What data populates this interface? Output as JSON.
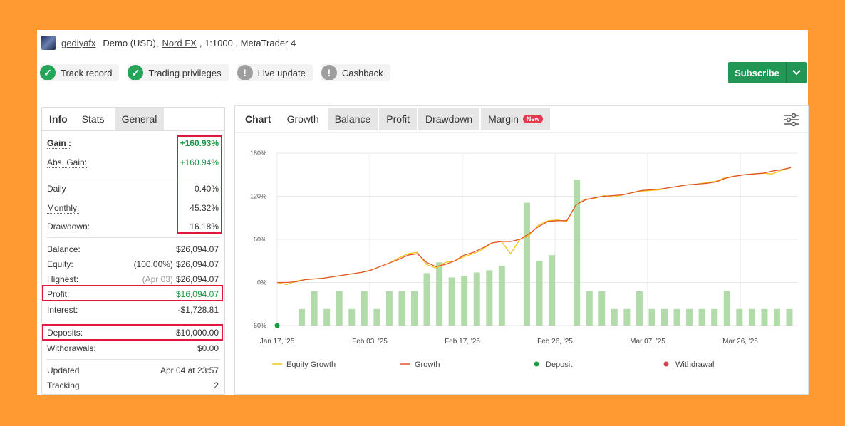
{
  "header": {
    "username": "gediyafx",
    "account_type": "Demo (USD),",
    "broker": "Nord FX",
    "leverage_platform": ", 1:1000 , MetaTrader 4"
  },
  "badges": [
    {
      "label": "Track record",
      "status": "ok"
    },
    {
      "label": "Trading privileges",
      "status": "ok"
    },
    {
      "label": "Live update",
      "status": "warn"
    },
    {
      "label": "Cashback",
      "status": "warn"
    }
  ],
  "subscribe_label": "Subscribe",
  "left_tabs": {
    "info": "Info",
    "stats": "Stats",
    "general": "General"
  },
  "stats": {
    "gain_label": "Gain :",
    "gain": "+160.93%",
    "abs_gain_label": "Abs. Gain:",
    "abs_gain": "+160.94%",
    "daily_label": "Daily",
    "daily": "0.40%",
    "monthly_label": "Monthly:",
    "monthly": "45.32%",
    "drawdown_label": "Drawdown:",
    "drawdown": "16.18%",
    "balance_label": "Balance:",
    "balance": "$26,094.07",
    "equity_label": "Equity:",
    "equity_pct": "(100.00%)",
    "equity": "$26,094.07",
    "highest_label": "Highest:",
    "highest_date": "(Apr 03)",
    "highest": "$26,094.07",
    "profit_label": "Profit:",
    "profit": "$16,094.07",
    "interest_label": "Interest:",
    "interest": "-$1,728.81",
    "deposits_label": "Deposits:",
    "deposits": "$10,000.00",
    "withdrawals_label": "Withdrawals:",
    "withdrawals": "$0.00",
    "updated_label": "Updated",
    "updated": "Apr 04 at 23:57",
    "tracking_label": "Tracking",
    "tracking": "2"
  },
  "right_tabs": {
    "chart": "Chart",
    "growth": "Growth",
    "balance": "Balance",
    "profit": "Profit",
    "drawdown": "Drawdown",
    "margin": "Margin",
    "new_badge": "New"
  },
  "chart_data": {
    "type": "line",
    "y_ticks": [
      "180%",
      "120%",
      "60%",
      "0%",
      "-60%"
    ],
    "ylim": [
      -60,
      180
    ],
    "x_ticks": [
      "Jan 17, '25",
      "Feb 03, '25",
      "Feb 17, '25",
      "Feb 26, '25",
      "Mar 07, '25",
      "Mar 26, '25"
    ],
    "grid": true,
    "legend_position": "bottom",
    "legend": [
      {
        "name": "Equity Growth",
        "color": "#f5c518",
        "kind": "line"
      },
      {
        "name": "Growth",
        "color": "#e0562a",
        "kind": "line"
      },
      {
        "name": "Deposit",
        "color": "#1a9a44",
        "kind": "dot"
      },
      {
        "name": "Withdrawal",
        "color": "#e0394a",
        "kind": "dot"
      }
    ],
    "bar_color": "#a8d8a0",
    "bars": [
      0,
      -37,
      -12,
      -37,
      -12,
      -37,
      -12,
      -37,
      -12,
      -12,
      -12,
      13,
      28,
      7,
      9,
      14,
      17,
      23,
      0,
      111,
      30,
      38,
      0,
      143,
      -12,
      -12,
      -37,
      -37,
      -12,
      -37,
      -37,
      -37,
      -37,
      -37,
      -37,
      -12,
      -37,
      -37,
      -37,
      -37,
      -37
    ],
    "growth": [
      0,
      0,
      1,
      4,
      5,
      6,
      8,
      10,
      12,
      14,
      17,
      22,
      27,
      32,
      38,
      40,
      28,
      22,
      25,
      30,
      38,
      42,
      48,
      55,
      57,
      57,
      60,
      68,
      78,
      85,
      86,
      86,
      108,
      115,
      118,
      120,
      121,
      122,
      125,
      128,
      129,
      130,
      132,
      134,
      136,
      137,
      138,
      140,
      145,
      148,
      150,
      151,
      152,
      155,
      157,
      160
    ],
    "equity": [
      0,
      -3,
      2,
      4,
      5,
      6,
      8,
      10,
      12,
      14,
      17,
      22,
      27,
      34,
      40,
      42,
      25,
      20,
      28,
      30,
      36,
      40,
      46,
      55,
      57,
      40,
      60,
      66,
      80,
      86,
      87,
      85,
      108,
      116,
      117,
      121,
      119,
      122,
      125,
      127,
      128,
      129,
      132,
      134,
      136,
      137,
      139,
      141,
      146,
      148,
      150,
      151,
      152,
      151,
      156,
      160
    ]
  }
}
